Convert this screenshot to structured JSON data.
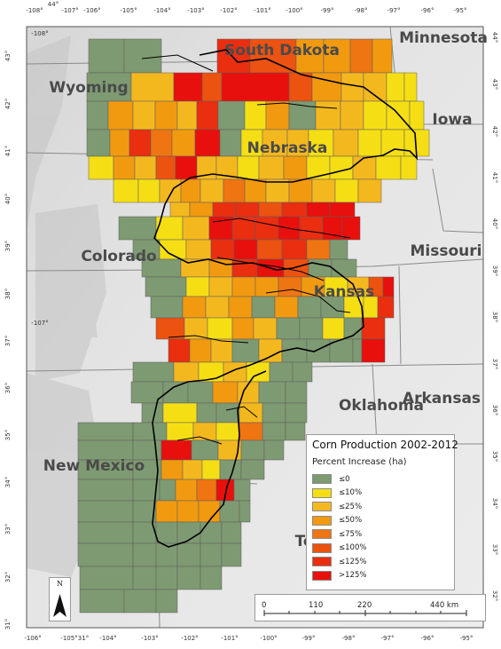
{
  "map": {
    "longitude_labels_top": [
      "-108°",
      "-107°",
      "-106°",
      "-105°",
      "-104°",
      "-103°",
      "-102°",
      "-101°",
      "-100°",
      "-99°",
      "-98°",
      "-97°",
      "-96°",
      "-95°"
    ],
    "longitude_labels_bottom": [
      "-106°",
      "-105°",
      "-104°",
      "-103°",
      "-102°",
      "-101°",
      "-100°",
      "-99°",
      "-98°",
      "-97°",
      "-96°",
      "-95°"
    ],
    "latitude_labels_left": [
      "43°",
      "42°",
      "41°",
      "40°",
      "39°",
      "38°",
      "37°",
      "36°",
      "35°",
      "34°",
      "33°",
      "32°",
      "31°"
    ],
    "latitude_labels_right": [
      "44°",
      "43°",
      "42°",
      "41°",
      "40°",
      "39°",
      "38°",
      "37°",
      "36°",
      "35°",
      "34°",
      "33°",
      "32°"
    ],
    "corner_labels": [
      "44°",
      "-108°",
      "-107°",
      "31°"
    ],
    "state_labels": [
      "South Dakota",
      "Minnesota",
      "Wyoming",
      "Iowa",
      "Nebraska",
      "Missouri",
      "Colorado",
      "Kansas",
      "Arkansas",
      "Oklahoma",
      "New Mexico",
      "Te"
    ]
  },
  "legend": {
    "title": "Corn Production 2002-2012",
    "subtitle": "Percent Increase (ha)",
    "classes": [
      {
        "label": "≤0",
        "color": "#7e9a72"
      },
      {
        "label": "≤10%",
        "color": "#f5de14"
      },
      {
        "label": "≤25%",
        "color": "#f4b81f"
      },
      {
        "label": "≤50%",
        "color": "#f19a10"
      },
      {
        "label": "≤75%",
        "color": "#ef7512"
      },
      {
        "label": "≤100%",
        "color": "#ec5210"
      },
      {
        "label": "≤125%",
        "color": "#ea2e10"
      },
      {
        "label": ">125%",
        "color": "#e8100c"
      }
    ]
  },
  "scalebar": {
    "labels": [
      "0",
      "110",
      "220",
      "440 km"
    ]
  },
  "north_arrow": {
    "label": "N"
  }
}
